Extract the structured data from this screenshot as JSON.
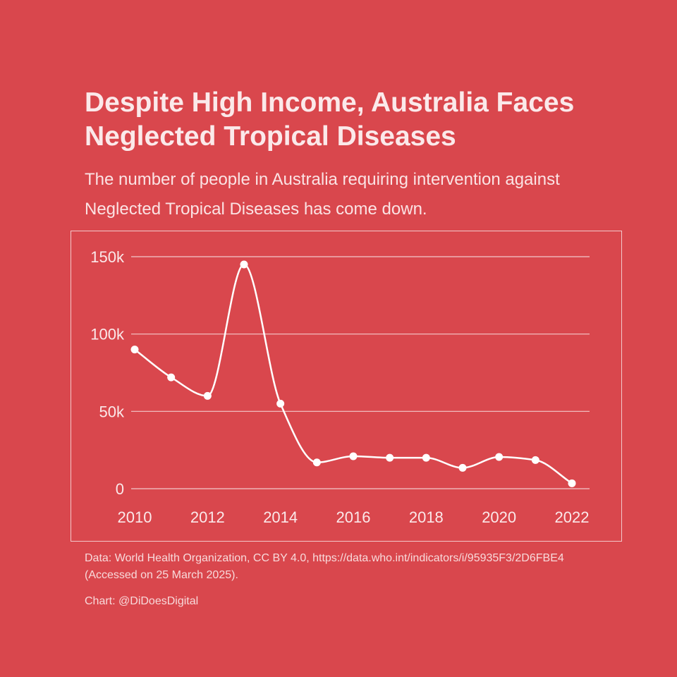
{
  "colors": {
    "background": "#d9474d",
    "text": "#fbe9ea",
    "line": "#ffffff",
    "grid": "#f3c9cb"
  },
  "header": {
    "title": "Despite High Income, Australia Faces Neglected Tropical Diseases",
    "subtitle": "The number of people in Australia requiring intervention against Neglected Tropical Diseases has come down."
  },
  "footer": {
    "source": "Data: World Health Organization, CC BY 4.0, https://data.who.int/indicators/i/95935F3/2D6FBE4 (Accessed on 25 March 2025).",
    "credit": "Chart: @DiDoesDigital"
  },
  "chart_data": {
    "type": "line",
    "smooth": true,
    "markers": true,
    "x": [
      2010,
      2011,
      2012,
      2013,
      2014,
      2015,
      2016,
      2017,
      2018,
      2019,
      2020,
      2021,
      2022
    ],
    "series": [
      {
        "values": [
          90000,
          72000,
          60000,
          145000,
          55000,
          17000,
          21000,
          20000,
          20000,
          13500,
          20500,
          18500,
          3500
        ]
      }
    ],
    "xlim": [
      2010,
      2022
    ],
    "ylim": [
      0,
      150000
    ],
    "x_ticks": [
      2010,
      2012,
      2014,
      2016,
      2018,
      2020,
      2022
    ],
    "y_ticks": [
      {
        "value": 0,
        "label": "0"
      },
      {
        "value": 50000,
        "label": "50k"
      },
      {
        "value": 100000,
        "label": "100k"
      },
      {
        "value": 150000,
        "label": "150k"
      }
    ],
    "grid": "horizontal",
    "legend": "none"
  }
}
